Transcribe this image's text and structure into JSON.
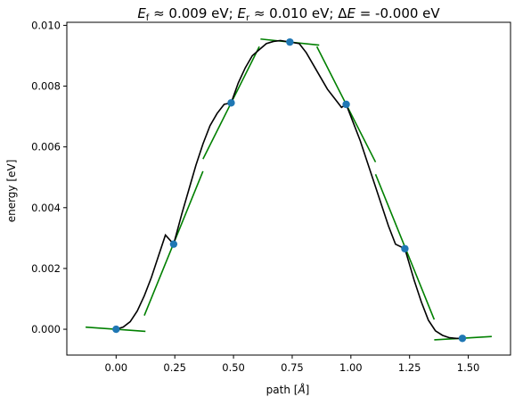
{
  "chart_data": {
    "type": "line",
    "title": {
      "ef_symbol": "E",
      "ef_sub": "f",
      "ef_value": " ≈  0.009 eV; ",
      "er_symbol": "E",
      "er_sub": "r",
      "er_value": " ≈  0.010 eV; Δ",
      "de_symbol": "E",
      "de_value": " = -0.000 eV"
    },
    "xlabel_text": "path [",
    "xlabel_unit": "Å",
    "xlabel_close": "]",
    "ylabel": "energy [eV]",
    "xlim": [
      -0.21,
      1.68
    ],
    "ylim": [
      -0.00085,
      0.0101
    ],
    "xticks": [
      0.0,
      0.25,
      0.5,
      0.75,
      1.0,
      1.25,
      1.5
    ],
    "xtick_labels": [
      "0.00",
      "0.25",
      "0.50",
      "0.75",
      "1.00",
      "1.25",
      "1.50"
    ],
    "yticks": [
      0.0,
      0.002,
      0.004,
      0.006,
      0.008,
      0.01
    ],
    "ytick_labels": [
      "0.000",
      "0.002",
      "0.004",
      "0.006",
      "0.008",
      "0.010"
    ],
    "images": {
      "x": [
        0.0,
        0.245,
        0.49,
        0.74,
        0.98,
        1.23,
        1.475
      ],
      "y": [
        0.0,
        0.0028,
        0.00745,
        0.00945,
        0.0074,
        0.00265,
        -0.0003
      ]
    },
    "curve": {
      "x": [
        0,
        0.03,
        0.06,
        0.09,
        0.12,
        0.15,
        0.18,
        0.21,
        0.245,
        0.28,
        0.31,
        0.34,
        0.37,
        0.4,
        0.43,
        0.46,
        0.49,
        0.52,
        0.55,
        0.58,
        0.61,
        0.64,
        0.67,
        0.7,
        0.74,
        0.78,
        0.81,
        0.84,
        0.87,
        0.9,
        0.93,
        0.96,
        0.98,
        1.01,
        1.04,
        1.07,
        1.1,
        1.13,
        1.16,
        1.19,
        1.23,
        1.27,
        1.3,
        1.33,
        1.36,
        1.39,
        1.42,
        1.45,
        1.475
      ],
      "y": [
        0,
        7e-05,
        0.00025,
        0.0006,
        0.0011,
        0.0017,
        0.0024,
        0.0031,
        0.0028,
        0.0038,
        0.0046,
        0.0054,
        0.0061,
        0.0067,
        0.0071,
        0.0074,
        0.00745,
        0.0081,
        0.0086,
        0.009,
        0.0092,
        0.0094,
        0.00947,
        0.0095,
        0.00945,
        0.0094,
        0.0091,
        0.0087,
        0.0083,
        0.0079,
        0.0076,
        0.0073,
        0.0074,
        0.0068,
        0.0062,
        0.0055,
        0.0048,
        0.0041,
        0.0034,
        0.0028,
        0.00265,
        0.0016,
        0.0009,
        0.0003,
        -5e-05,
        -0.0002,
        -0.00028,
        -0.0003,
        -0.0003
      ]
    },
    "tangents": [
      {
        "x": [
          -0.13,
          0.125
        ],
        "y": [
          7e-05,
          -7e-05
        ]
      },
      {
        "x": [
          0.12,
          0.37
        ],
        "y": [
          0.00045,
          0.0052
        ]
      },
      {
        "x": [
          0.37,
          0.61
        ],
        "y": [
          0.0056,
          0.0093
        ]
      },
      {
        "x": [
          0.615,
          0.865
        ],
        "y": [
          0.00955,
          0.00935
        ]
      },
      {
        "x": [
          0.855,
          1.105
        ],
        "y": [
          0.0093,
          0.0055
        ]
      },
      {
        "x": [
          1.105,
          1.355
        ],
        "y": [
          0.0051,
          0.00032
        ]
      },
      {
        "x": [
          1.355,
          1.6
        ],
        "y": [
          -0.00035,
          -0.00024
        ]
      }
    ],
    "colors": {
      "curve": "#000000",
      "tangent": "#008000",
      "points": "#1f77b4"
    }
  }
}
